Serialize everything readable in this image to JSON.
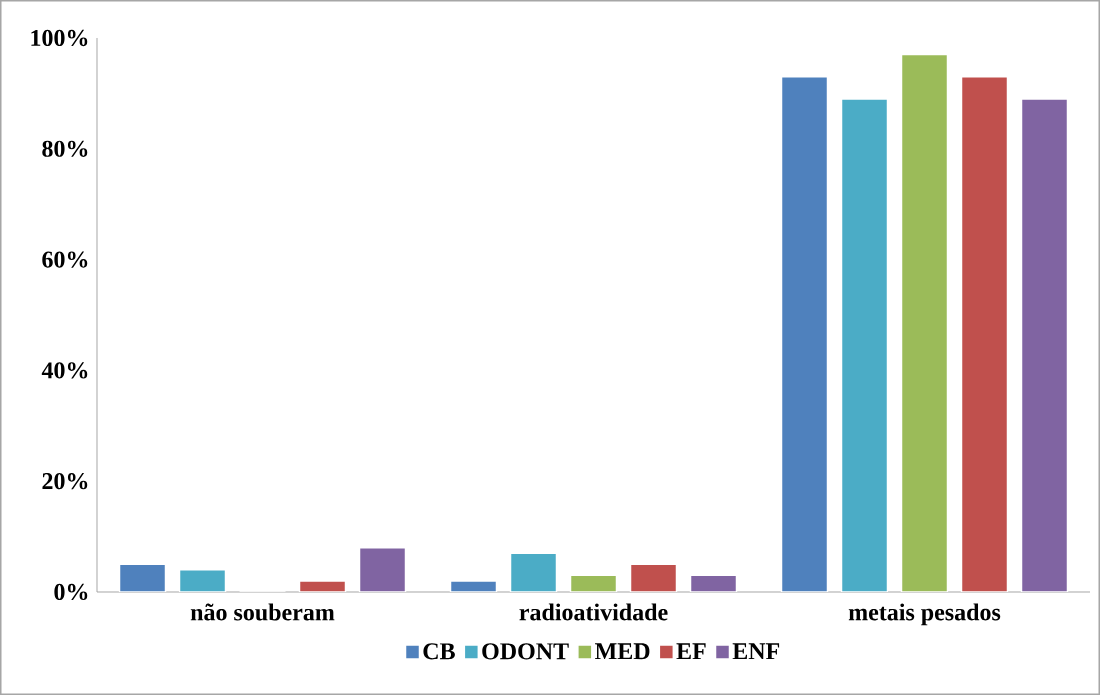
{
  "chart_data": {
    "type": "bar",
    "categories": [
      "não souberam",
      "radioatividade",
      "metais pesados"
    ],
    "series": [
      {
        "name": "CB",
        "color": "#4f81bd",
        "values": [
          5,
          2,
          93
        ]
      },
      {
        "name": "ODONT",
        "color": "#4bacc6",
        "values": [
          4,
          7,
          89
        ]
      },
      {
        "name": "MED",
        "color": "#9bbb59",
        "values": [
          0,
          3,
          97
        ]
      },
      {
        "name": "EF",
        "color": "#c0504d",
        "values": [
          2,
          5,
          93
        ]
      },
      {
        "name": "ENF",
        "color": "#8064a2",
        "values": [
          8,
          3,
          89
        ]
      }
    ],
    "ylim": [
      0,
      100
    ],
    "yticks": [
      {
        "value": 0,
        "label": "0%"
      },
      {
        "value": 20,
        "label": "20%"
      },
      {
        "value": 40,
        "label": "40%"
      },
      {
        "value": 60,
        "label": "60%"
      },
      {
        "value": 80,
        "label": "80%"
      },
      {
        "value": 100,
        "label": "100%"
      }
    ],
    "grid": false,
    "legend": "bottom"
  }
}
